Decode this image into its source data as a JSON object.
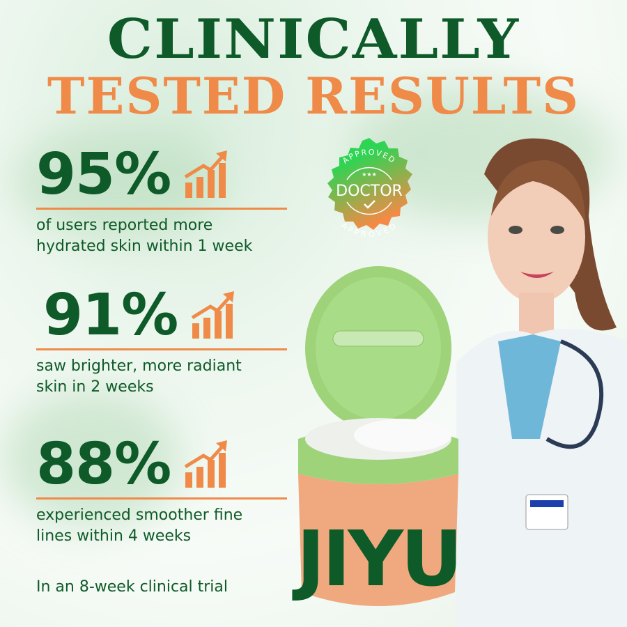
{
  "headline": {
    "line1": "CLINICALLY",
    "line2": "TESTED RESULTS"
  },
  "stats": [
    {
      "percent": "95%",
      "description_line1": "of users reported more",
      "description_line2": "hydrated skin within 1 week"
    },
    {
      "percent": "91%",
      "description_line1": "saw brighter, more radiant",
      "description_line2": "skin in 2 weeks"
    },
    {
      "percent": "88%",
      "description_line1": "experienced smoother fine",
      "description_line2": "lines within 4 weeks"
    }
  ],
  "footnote": "In an 8-week clinical trial",
  "badge": {
    "top": "APPROVED",
    "center": "DOCTOR",
    "bottom": "APPROVED",
    "stars": "★★★"
  },
  "product": {
    "brand": "JIYU"
  },
  "icons": [
    "growth-chart-icon",
    "check-icon",
    "star-icon"
  ],
  "colors": {
    "green": "#0e5a28",
    "orange": "#ef8a48",
    "jar_lid": "#9ed37a",
    "jar_body": "#f0a97f"
  }
}
